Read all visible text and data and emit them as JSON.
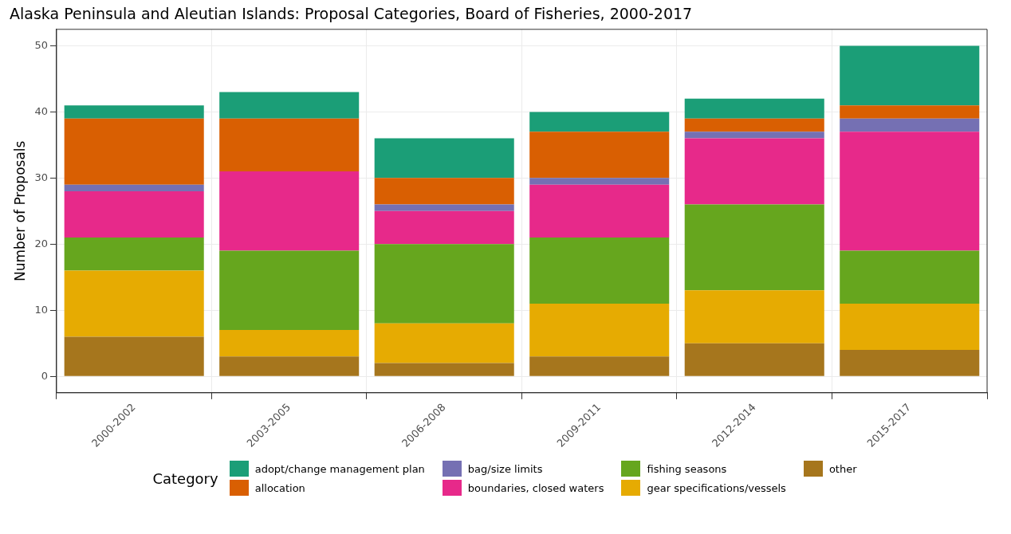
{
  "chart_data": {
    "type": "bar",
    "title": "Alaska Peninsula and Aleutian Islands: Proposal Categories, Board of Fisheries, 2000-2017",
    "ylabel": "Number of Proposals",
    "legend_title": "Category",
    "categories": [
      "2000-2002",
      "2003-2005",
      "2006-2008",
      "2009-2011",
      "2012-2014",
      "2015-2017"
    ],
    "stacked": true,
    "ylim": [
      -2.5,
      52.5
    ],
    "yticks": [
      0,
      10,
      20,
      30,
      40,
      50
    ],
    "grid": true,
    "legend": "bottom",
    "series": [
      {
        "name": "other",
        "color": "#a6761d",
        "values": [
          6,
          3,
          2,
          3,
          5,
          4
        ]
      },
      {
        "name": "gear specifications/vessels",
        "color": "#e6ab02",
        "values": [
          10,
          4,
          6,
          8,
          8,
          7
        ]
      },
      {
        "name": "fishing seasons",
        "color": "#66a61e",
        "values": [
          5,
          12,
          12,
          10,
          13,
          8
        ]
      },
      {
        "name": "boundaries, closed waters",
        "color": "#e7298a",
        "values": [
          7,
          12,
          5,
          8,
          10,
          18
        ]
      },
      {
        "name": "bag/size limits",
        "color": "#7570b3",
        "values": [
          1,
          0,
          1,
          1,
          1,
          2
        ]
      },
      {
        "name": "allocation",
        "color": "#d95f02",
        "values": [
          10,
          8,
          4,
          7,
          2,
          2
        ]
      },
      {
        "name": "adopt/change management plan",
        "color": "#1b9e77",
        "values": [
          2,
          4,
          6,
          3,
          3,
          9
        ]
      }
    ]
  }
}
